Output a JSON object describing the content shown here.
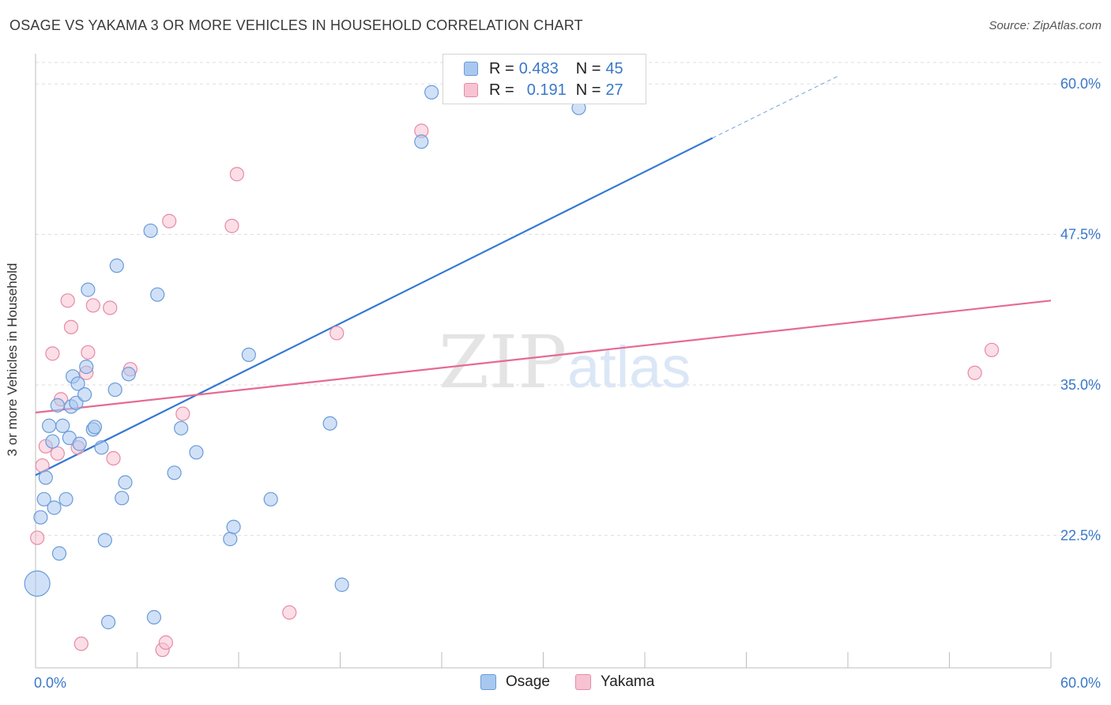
{
  "header": {
    "title": "OSAGE VS YAKAMA 3 OR MORE VEHICLES IN HOUSEHOLD CORRELATION CHART",
    "source": "Source: ZipAtlas.com"
  },
  "legend_top": {
    "rows": [
      {
        "r_label": "R =",
        "r_value": "0.483",
        "n_label": "N =",
        "n_value": "45",
        "color": "#a9c8f0",
        "stroke": "#6a9bd8"
      },
      {
        "r_label": "R =",
        "r_value": "0.191",
        "n_label": "N =",
        "n_value": "27",
        "color": "#f7c3d2",
        "stroke": "#e68aa6"
      }
    ]
  },
  "legend_bottom": {
    "items": [
      {
        "label": "Osage",
        "color": "#a9c8f0",
        "stroke": "#6a9bd8"
      },
      {
        "label": "Yakama",
        "color": "#f7c3d2",
        "stroke": "#e68aa6"
      }
    ]
  },
  "watermark": {
    "part1": "ZIP",
    "part2": "atlas"
  },
  "chart_data": {
    "type": "scatter",
    "title": "OSAGE VS YAKAMA 3 OR MORE VEHICLES IN HOUSEHOLD CORRELATION CHART",
    "xlabel": "",
    "ylabel": "3 or more Vehicles in Household",
    "xlim": [
      0,
      60
    ],
    "ylim": [
      11.5,
      62.5
    ],
    "x_ticks_labels": [
      "0.0%",
      "60.0%"
    ],
    "y_ticks": [
      22.5,
      35.0,
      47.5,
      60.0
    ],
    "y_tick_labels": [
      "22.5%",
      "35.0%",
      "47.5%",
      "60.0%"
    ],
    "grid": true,
    "colors": {
      "osage": "#3478d4",
      "yakama": "#e56a94",
      "axis_label": "#3a78c9"
    },
    "series": [
      {
        "name": "Osage",
        "fill": "#a9c8f0",
        "stroke": "#6a9bd8",
        "points": [
          {
            "x": 0.1,
            "y": 18.5,
            "big": true
          },
          {
            "x": 0.3,
            "y": 24.0
          },
          {
            "x": 0.5,
            "y": 25.5
          },
          {
            "x": 0.6,
            "y": 27.3
          },
          {
            "x": 0.8,
            "y": 31.6
          },
          {
            "x": 1.0,
            "y": 30.3
          },
          {
            "x": 1.1,
            "y": 24.8
          },
          {
            "x": 1.4,
            "y": 21.0
          },
          {
            "x": 1.3,
            "y": 33.3
          },
          {
            "x": 1.6,
            "y": 31.6
          },
          {
            "x": 1.8,
            "y": 25.5
          },
          {
            "x": 2.0,
            "y": 30.6
          },
          {
            "x": 2.1,
            "y": 33.2
          },
          {
            "x": 2.2,
            "y": 35.7
          },
          {
            "x": 2.4,
            "y": 33.5
          },
          {
            "x": 2.5,
            "y": 35.1
          },
          {
            "x": 2.6,
            "y": 30.1
          },
          {
            "x": 2.9,
            "y": 34.2
          },
          {
            "x": 3.0,
            "y": 36.5
          },
          {
            "x": 3.1,
            "y": 42.9
          },
          {
            "x": 3.4,
            "y": 31.3
          },
          {
            "x": 3.5,
            "y": 31.5
          },
          {
            "x": 3.9,
            "y": 29.8
          },
          {
            "x": 4.1,
            "y": 22.1
          },
          {
            "x": 4.3,
            "y": 15.3
          },
          {
            "x": 4.7,
            "y": 34.6
          },
          {
            "x": 4.8,
            "y": 44.9
          },
          {
            "x": 5.1,
            "y": 25.6
          },
          {
            "x": 5.3,
            "y": 26.9
          },
          {
            "x": 5.5,
            "y": 35.9
          },
          {
            "x": 6.8,
            "y": 47.8
          },
          {
            "x": 7.0,
            "y": 15.7
          },
          {
            "x": 7.2,
            "y": 42.5
          },
          {
            "x": 8.2,
            "y": 27.7
          },
          {
            "x": 8.6,
            "y": 31.4
          },
          {
            "x": 9.5,
            "y": 29.4
          },
          {
            "x": 11.5,
            "y": 22.2
          },
          {
            "x": 11.7,
            "y": 23.2
          },
          {
            "x": 12.6,
            "y": 37.5
          },
          {
            "x": 13.9,
            "y": 25.5
          },
          {
            "x": 17.4,
            "y": 31.8
          },
          {
            "x": 18.1,
            "y": 18.4
          },
          {
            "x": 22.8,
            "y": 55.2
          },
          {
            "x": 23.4,
            "y": 59.3
          },
          {
            "x": 32.1,
            "y": 58.0
          }
        ]
      },
      {
        "name": "Yakama",
        "fill": "#f7c3d2",
        "stroke": "#e68aa6",
        "points": [
          {
            "x": 0.1,
            "y": 22.3
          },
          {
            "x": 0.4,
            "y": 28.3
          },
          {
            "x": 0.6,
            "y": 29.9
          },
          {
            "x": 1.0,
            "y": 37.6
          },
          {
            "x": 1.3,
            "y": 29.3
          },
          {
            "x": 1.5,
            "y": 33.8
          },
          {
            "x": 1.9,
            "y": 42.0
          },
          {
            "x": 2.1,
            "y": 39.8
          },
          {
            "x": 2.5,
            "y": 29.8
          },
          {
            "x": 2.7,
            "y": 13.5
          },
          {
            "x": 3.1,
            "y": 37.7
          },
          {
            "x": 3.0,
            "y": 36.0
          },
          {
            "x": 3.4,
            "y": 41.6
          },
          {
            "x": 4.4,
            "y": 41.4
          },
          {
            "x": 4.6,
            "y": 28.9
          },
          {
            "x": 5.6,
            "y": 36.3
          },
          {
            "x": 7.5,
            "y": 13.0
          },
          {
            "x": 7.7,
            "y": 13.6
          },
          {
            "x": 7.9,
            "y": 48.6
          },
          {
            "x": 8.7,
            "y": 32.6
          },
          {
            "x": 11.6,
            "y": 48.2
          },
          {
            "x": 11.9,
            "y": 52.5
          },
          {
            "x": 15.0,
            "y": 16.1
          },
          {
            "x": 17.8,
            "y": 39.3
          },
          {
            "x": 22.8,
            "y": 56.1
          },
          {
            "x": 55.5,
            "y": 36.0
          },
          {
            "x": 56.5,
            "y": 37.9
          }
        ]
      }
    ],
    "trendlines": [
      {
        "series": "Osage",
        "x0": 0,
        "y0": 27.5,
        "x1": 40.0,
        "y1": 55.5,
        "dashed_to_x": 47.5,
        "dashed_to_y": 60.7
      },
      {
        "series": "Yakama",
        "x0": 0,
        "y0": 32.7,
        "x1": 60.0,
        "y1": 42.0
      }
    ]
  }
}
